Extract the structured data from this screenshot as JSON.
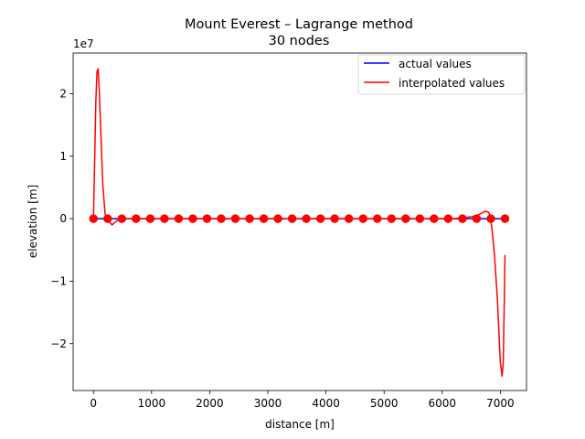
{
  "chart_data": {
    "type": "line",
    "title": "Mount Everest – Lagrange method",
    "subtitle": "30 nodes",
    "xlabel": "distance [m]",
    "ylabel": "elevation [m]",
    "y_scale_label": "1e7",
    "xlim": [
      -350,
      7450
    ],
    "ylim": [
      -2.75,
      2.65
    ],
    "x_ticks": [
      0,
      1000,
      2000,
      3000,
      4000,
      5000,
      6000,
      7000
    ],
    "x_tick_labels": [
      "0",
      "1000",
      "2000",
      "3000",
      "4000",
      "5000",
      "6000",
      "7000"
    ],
    "y_ticks": [
      -2,
      -1,
      0,
      1,
      2
    ],
    "y_tick_labels": [
      "−2",
      "−1",
      "0",
      "1",
      "2"
    ],
    "grid": false,
    "legend_position": "top-right",
    "series": [
      {
        "name": "actual values",
        "color": "#0000ff",
        "x": [
          0,
          7080
        ],
        "y": [
          0,
          0
        ]
      },
      {
        "name": "interpolated values",
        "color": "#ff0000",
        "x": [
          0,
          20,
          40,
          60,
          80,
          100,
          130,
          160,
          200,
          244,
          280,
          320,
          380,
          450,
          488,
          600,
          6200,
          6500,
          6600,
          6700,
          6750,
          6800,
          6830,
          6860,
          6900,
          6950,
          7000,
          7030,
          7050,
          7070,
          7080
        ],
        "y": [
          0,
          0.9,
          1.85,
          2.35,
          2.4,
          2.05,
          1.3,
          0.55,
          0.07,
          0,
          -0.06,
          -0.1,
          -0.05,
          -0.005,
          0,
          0,
          0,
          0.03,
          0.05,
          0.1,
          0.12,
          0.1,
          0.02,
          -0.2,
          -0.6,
          -1.3,
          -2.3,
          -2.52,
          -2.3,
          -1.2,
          -0.58
        ]
      }
    ],
    "nodes": {
      "color": "#ff0000",
      "x": [
        0,
        244,
        488,
        732,
        977,
        1221,
        1465,
        1709,
        1953,
        2197,
        2441,
        2686,
        2930,
        3174,
        3418,
        3662,
        3906,
        4150,
        4394,
        4639,
        4883,
        5127,
        5371,
        5615,
        5859,
        6103,
        6348,
        6592,
        6836,
        7080
      ],
      "y": [
        0,
        0,
        0,
        0,
        0,
        0,
        0,
        0,
        0,
        0,
        0,
        0,
        0,
        0,
        0,
        0,
        0,
        0,
        0,
        0,
        0,
        0,
        0,
        0,
        0,
        0,
        0,
        0,
        0,
        0
      ]
    }
  }
}
